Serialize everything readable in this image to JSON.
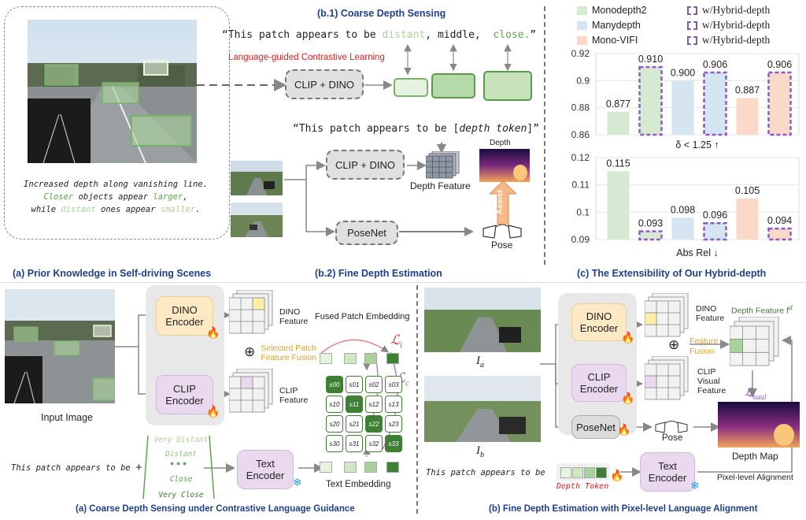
{
  "top": {
    "prior_caption": "(a) Prior Knowledge in Self-driving Scenes",
    "prior_text_line1": "Increased depth along vanishing line.",
    "prior_text_line2_a": "Closer",
    "prior_text_line2_b": " objects appear ",
    "prior_text_line2_c": "larger",
    "prior_text_line3_a": "while ",
    "prior_text_line3_b": "distant",
    "prior_text_line3_c": " ones appear ",
    "prior_text_line3_d": "smaller",
    "b1_title": "(b.1) Coarse Depth Sensing",
    "b1_quote_a": "“This patch appears to be ",
    "b1_quote_distant": "distant",
    "b1_quote_middle": ", middle,",
    "b1_quote_close": "close.",
    "b1_quote_end": "”",
    "b1_contrastive": "Language-guided Contrastive Learning",
    "b1_clip_dino": "CLIP + DINO",
    "b2_quote_a": "“This patch appears to be [",
    "b2_quote_token": "depth token",
    "b2_quote_end": "]”",
    "b2_clip_dino": "CLIP + DINO",
    "b2_depth_feature": "Depth Feature",
    "b2_depth": "Depth",
    "b2_assist": "Assist",
    "b2_posenet": "PoseNet",
    "b2_pose": "Pose",
    "b2_caption": "(b.2) Fine Depth Estimation",
    "c_caption": "(c) The Extensibility  of Our Hybrid-depth"
  },
  "legend": [
    {
      "label": "Monodepth2",
      "color": "#d5ead0"
    },
    {
      "label": "Manydepth",
      "color": "#d6e5f2"
    },
    {
      "label": "Mono-VIFI",
      "color": "#fad9c8"
    },
    {
      "label": "w/Hybrid-depth",
      "color": "#7b5ca8"
    },
    {
      "label": "w/Hybrid-depth",
      "color": "#7b5ca8"
    },
    {
      "label": "w/Hybrid-depth",
      "color": "#7b5ca8"
    }
  ],
  "chart_data": [
    {
      "type": "bar",
      "ylabel": "δ < 1.25 ↑",
      "ylim": [
        0.86,
        0.92
      ],
      "yticks": [
        "0.92",
        "0.9",
        "0.88",
        "0.86"
      ],
      "categories": [
        "Monodepth2",
        "w/Hybrid-depth",
        "Manydepth",
        "w/Hybrid-depth",
        "Mono-VIFI",
        "w/Hybrid-depth"
      ],
      "values": [
        0.877,
        0.91,
        0.9,
        0.906,
        0.887,
        0.906
      ],
      "labels": [
        "0.877",
        "0.910",
        "0.900",
        "0.906",
        "0.887",
        "0.906"
      ],
      "colors": [
        "#d5ead0",
        "#d5ead0",
        "#d6e5f2",
        "#d6e5f2",
        "#fad9c8",
        "#fad9c8"
      ],
      "dashed": [
        false,
        true,
        false,
        true,
        false,
        true
      ]
    },
    {
      "type": "bar",
      "ylabel": "Abs Rel ↓",
      "ylim": [
        0.09,
        0.12
      ],
      "yticks": [
        "0.12",
        "0.11",
        "0.1",
        "0.09"
      ],
      "categories": [
        "Monodepth2",
        "w/Hybrid-depth",
        "Manydepth",
        "w/Hybrid-depth",
        "Mono-VIFI",
        "w/Hybrid-depth"
      ],
      "values": [
        0.115,
        0.093,
        0.098,
        0.096,
        0.105,
        0.094
      ],
      "labels": [
        "0.115",
        "0.093",
        "0.098",
        "0.096",
        "0.105",
        "0.094"
      ],
      "colors": [
        "#d5ead0",
        "#d5ead0",
        "#d6e5f2",
        "#d6e5f2",
        "#fad9c8",
        "#fad9c8"
      ],
      "dashed": [
        false,
        true,
        false,
        true,
        false,
        true
      ]
    }
  ],
  "bottom_left": {
    "dino_encoder": "DINO\nEncoder",
    "dino_feature": "DINO\nFeature",
    "clip_encoder": "CLIP\nEncoder",
    "clip_feature": "CLIP\nFeature",
    "input_image": "Input Image",
    "fused": "Fused Patch Embedding",
    "selected": "Selected Patch\nFeature Fusion",
    "li": "ℒ",
    "li_sub": "i",
    "lc": "ℒ",
    "lc_sub": "c",
    "prompt": "This patch appears to be",
    "very_distant": "Very Distant",
    "distant": "Distant",
    "close": "Close",
    "very_close": "Very Close",
    "text_encoder": "Text\nEncoder",
    "text_embedding": "Text Embedding",
    "caption": "(a) Coarse Depth Sensing under Contrastive Language Guidance",
    "matrix": [
      [
        "s00",
        "s01",
        "s02",
        "s03"
      ],
      [
        "s10",
        "s11",
        "s12",
        "s13"
      ],
      [
        "s20",
        "s21",
        "s22",
        "s23"
      ],
      [
        "s30",
        "s31",
        "s32",
        "s33"
      ]
    ]
  },
  "bottom_right": {
    "ia": "I",
    "ia_sub": "a",
    "ib": "I",
    "ib_sub": "b",
    "dino_encoder": "DINO\nEncoder",
    "dino_feature": "DINO\nFeature",
    "clip_encoder": "CLIP\nEncoder",
    "clip_feature": "CLIP\nVisual\nFeature",
    "feature_fusion": "Feature\nFusion",
    "depth_feature": "Depth Feature f",
    "depth_feature_sup": "d",
    "ltotal": "ℒ",
    "ltotal_sub": "total",
    "posenet": "PoseNet",
    "pose": "Pose",
    "depth_map": "Depth Map",
    "prompt": "This patch appears to be",
    "depth_token": "Depth Token",
    "text_encoder": "Text\nEncoder",
    "pixel_alignment": "Pixel-level Alignment",
    "caption": "(b) Fine Depth Estimation with Pixel-level  Language Alignment"
  }
}
